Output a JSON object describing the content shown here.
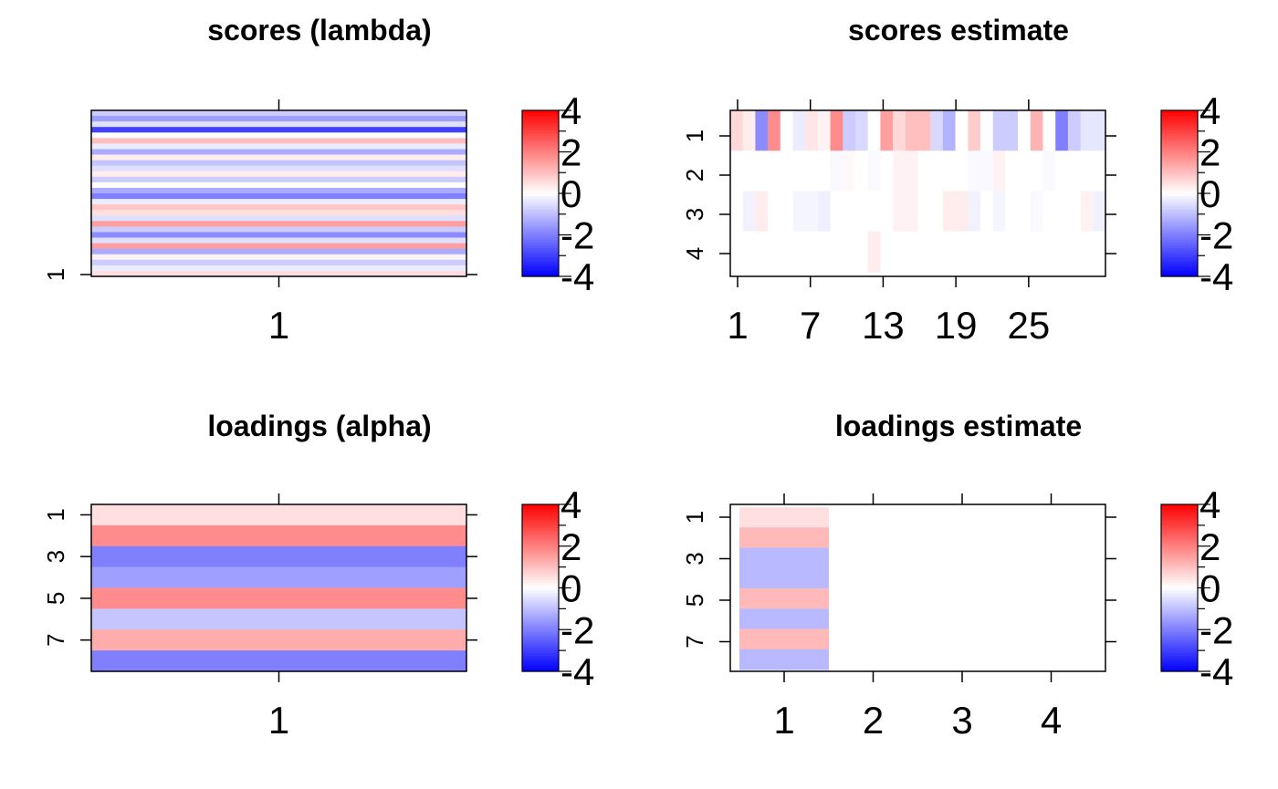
{
  "colorscale": {
    "low_color": "#0000ff",
    "mid_color": "#ffffff",
    "high_color": "#ff0000",
    "range": [
      -4,
      4
    ],
    "tick_labels": [
      "4",
      "2",
      "0",
      "-2",
      "-4"
    ],
    "tick_values": [
      4,
      2,
      0,
      -2,
      -4
    ]
  },
  "chart_data": [
    {
      "type": "heatmap",
      "title": "scores (lambda)",
      "x_tick_labels": [
        "1"
      ],
      "y_tick_labels": [
        "1"
      ],
      "n_rows": 30,
      "n_cols": 1,
      "values": [
        [
          -0.8
        ],
        [
          -1.5
        ],
        [
          -0.5
        ],
        [
          -3.0
        ],
        [
          0.0
        ],
        [
          1.0
        ],
        [
          -0.3
        ],
        [
          -1.3
        ],
        [
          0.3
        ],
        [
          -0.9
        ],
        [
          -0.5
        ],
        [
          0.3
        ],
        [
          -0.8
        ],
        [
          0.0
        ],
        [
          -1.3
        ],
        [
          -2.0
        ],
        [
          -0.3
        ],
        [
          0.9
        ],
        [
          0.5
        ],
        [
          -0.5
        ],
        [
          1.5
        ],
        [
          -0.8
        ],
        [
          -1.8
        ],
        [
          -0.5
        ],
        [
          1.5
        ],
        [
          -1.3
        ],
        [
          0.2
        ],
        [
          -0.8
        ],
        [
          -0.3
        ],
        [
          0.5
        ]
      ]
    },
    {
      "type": "heatmap",
      "title": "scores estimate",
      "x_tick_labels": [
        "1",
        "7",
        "13",
        "19",
        "25"
      ],
      "x_tick_values": [
        1,
        7,
        13,
        19,
        25
      ],
      "y_tick_labels": [
        "1",
        "2",
        "3",
        "4"
      ],
      "n_rows": 4,
      "n_cols": 30,
      "values": [
        [
          0.6,
          0.3,
          -1.8,
          1.8,
          0.0,
          -0.3,
          0.4,
          0.2,
          1.8,
          -0.8,
          -0.6,
          0.0,
          1.5,
          0.6,
          1.0,
          1.0,
          -0.6,
          -1.2,
          0.0,
          0.8,
          0.0,
          -0.8,
          -0.8,
          0.0,
          1.2,
          0.0,
          -2.0,
          -0.8,
          -0.4,
          -0.4
        ],
        [
          0.0,
          0.0,
          0.0,
          0.0,
          0.0,
          0.0,
          0.0,
          0.0,
          -0.1,
          0.1,
          0.0,
          -0.1,
          0.0,
          0.2,
          0.2,
          0.0,
          0.0,
          0.0,
          0.0,
          -0.1,
          -0.1,
          0.2,
          0.0,
          0.0,
          0.0,
          -0.1,
          0.0,
          0.0,
          0.0,
          0.0
        ],
        [
          0.0,
          -0.2,
          0.3,
          0.0,
          0.0,
          -0.15,
          -0.15,
          -0.25,
          0.0,
          0.0,
          0.0,
          0.0,
          0.0,
          0.2,
          0.2,
          0.0,
          0.0,
          0.3,
          0.3,
          -0.2,
          0.0,
          -0.15,
          0.0,
          0.0,
          -0.1,
          0.0,
          0.0,
          0.0,
          0.2,
          -0.2
        ],
        [
          0.0,
          0.0,
          0.0,
          0.0,
          0.0,
          0.0,
          0.0,
          0.0,
          0.0,
          0.0,
          0.0,
          0.3,
          0.0,
          0.0,
          0.0,
          0.0,
          0.0,
          0.0,
          0.0,
          0.0,
          0.0,
          0.0,
          0.0,
          0.0,
          0.0,
          0.0,
          0.0,
          0.0,
          0.0,
          0.0
        ]
      ]
    },
    {
      "type": "heatmap",
      "title": "loadings (alpha)",
      "x_tick_labels": [
        "1"
      ],
      "y_tick_labels": [
        "1",
        "3",
        "5",
        "7"
      ],
      "y_tick_values": [
        1,
        3,
        5,
        7
      ],
      "n_rows": 8,
      "n_cols": 1,
      "values": [
        [
          0.5
        ],
        [
          1.8
        ],
        [
          -2.0
        ],
        [
          -1.5
        ],
        [
          1.8
        ],
        [
          -0.9
        ],
        [
          1.3
        ],
        [
          -2.0
        ]
      ]
    },
    {
      "type": "heatmap",
      "title": "loadings estimate",
      "x_tick_labels": [
        "1",
        "2",
        "3",
        "4"
      ],
      "y_tick_labels": [
        "1",
        "3",
        "5",
        "7"
      ],
      "y_tick_values": [
        1,
        3,
        5,
        7
      ],
      "n_rows": 8,
      "n_cols": 4,
      "values": [
        [
          0.5,
          0,
          0,
          0
        ],
        [
          1.1,
          0,
          0,
          0
        ],
        [
          -1.1,
          0,
          0,
          0
        ],
        [
          -1.1,
          0,
          0,
          0
        ],
        [
          1.1,
          0,
          0,
          0
        ],
        [
          -1.1,
          0,
          0,
          0
        ],
        [
          1.1,
          0,
          0,
          0
        ],
        [
          -1.1,
          0,
          0,
          0
        ]
      ]
    }
  ]
}
